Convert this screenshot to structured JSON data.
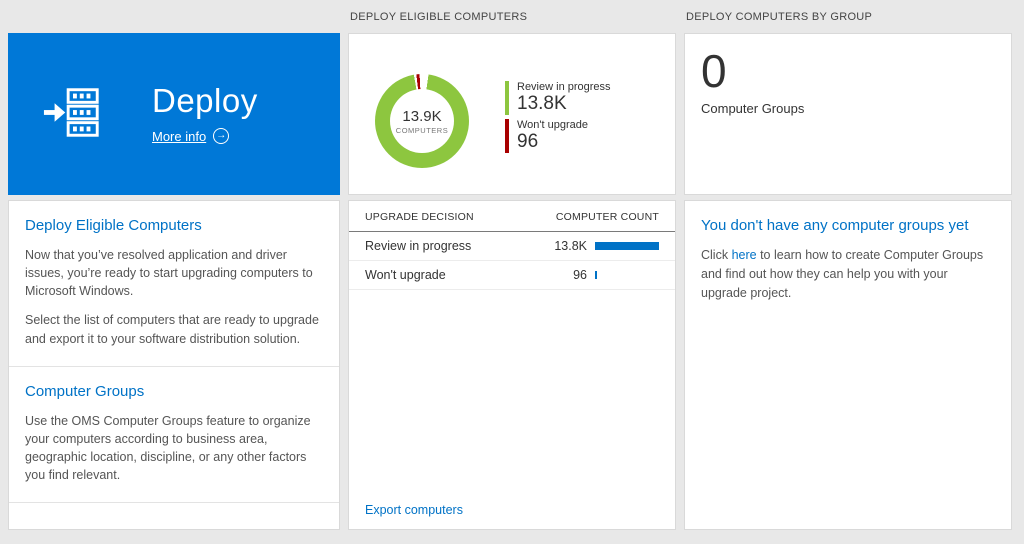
{
  "colors": {
    "accent_blue": "#0078d7",
    "link_blue": "#0072c6",
    "donut_green": "#8dc63f",
    "donut_red": "#a80000",
    "bar_blue": "#0072c6",
    "background": "#e8e8e8"
  },
  "left": {
    "tile": {
      "title": "Deploy",
      "more_info": "More info"
    },
    "sections": [
      {
        "title": "Deploy Eligible Computers",
        "paragraphs": [
          "Now that you’ve resolved application and driver issues, you’re ready to start upgrading computers to Microsoft Windows.",
          "Select the list of computers that are ready to upgrade and export it to your software distribution solution."
        ]
      },
      {
        "title": "Computer Groups",
        "paragraphs": [
          "Use the OMS Computer Groups feature to organize your computers according to business area, geographic location, discipline, or any other factors you find relevant."
        ]
      }
    ]
  },
  "middle": {
    "header": "DEPLOY ELIGIBLE COMPUTERS",
    "donut": {
      "center_value": "13.9K",
      "center_label": "COMPUTERS",
      "legend": [
        {
          "label": "Review in progress",
          "value": "13.8K",
          "color": "#8dc63f"
        },
        {
          "label": "Won't upgrade",
          "value": "96",
          "color": "#a80000"
        }
      ]
    },
    "table": {
      "col_decision": "UPGRADE DECISION",
      "col_count": "COMPUTER COUNT",
      "rows": [
        {
          "decision": "Review in progress",
          "count": "13.8K",
          "bar_pct": 100
        },
        {
          "decision": "Won't upgrade",
          "count": "96",
          "bar_pct": 3
        }
      ]
    },
    "export_link": "Export computers"
  },
  "right": {
    "header": "DEPLOY COMPUTERS BY GROUP",
    "count_tile": {
      "value": "0",
      "label": "Computer Groups"
    },
    "empty_card": {
      "title": "You don't have any computer groups yet",
      "text_before": "Click ",
      "link_text": "here",
      "text_after": " to learn how to create Computer Groups and find out how they can help you with your upgrade project."
    }
  },
  "chart_data": {
    "type": "pie",
    "title": "DEPLOY ELIGIBLE COMPUTERS",
    "categories": [
      "Review in progress",
      "Won't upgrade"
    ],
    "values": [
      13800,
      96
    ],
    "colors": [
      "#8dc63f",
      "#a80000"
    ],
    "center_value": "13.9K",
    "center_label": "COMPUTERS",
    "legend_position": "right"
  }
}
